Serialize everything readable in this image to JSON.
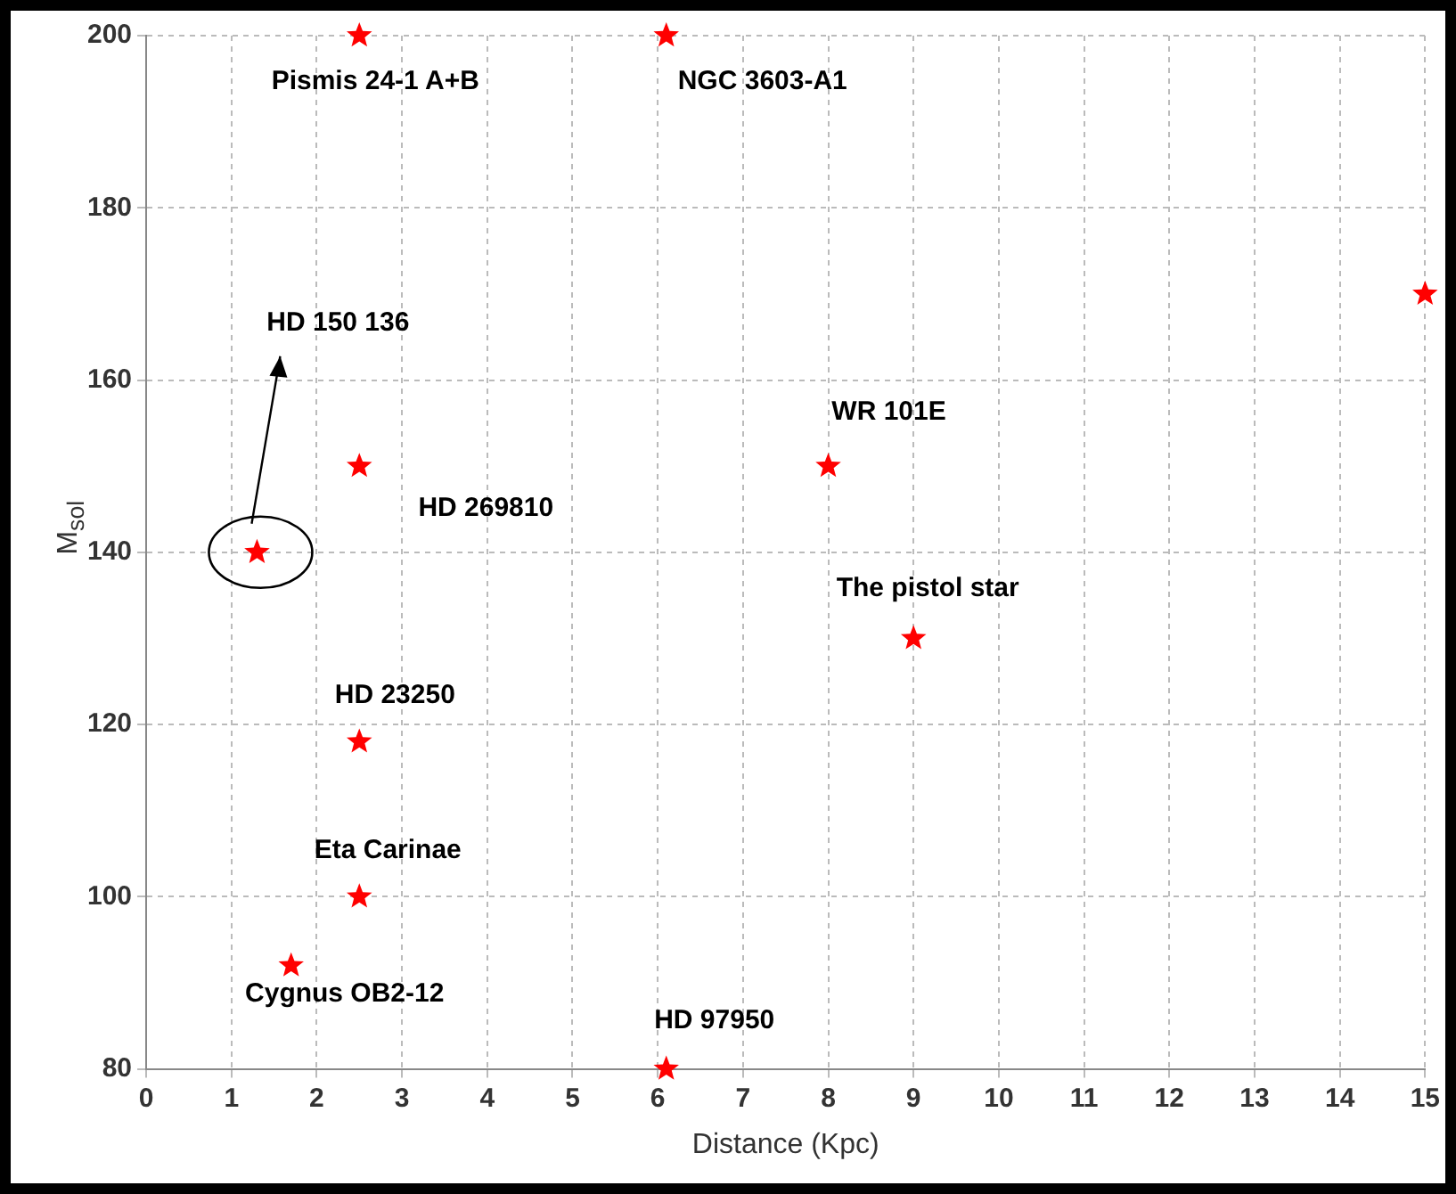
{
  "chart_data": {
    "type": "scatter",
    "xlabel": "Distance (Kpc)",
    "ylabel": "M$_{sol}$",
    "x": [
      2.5,
      6.1,
      15,
      8,
      2.5,
      1.3,
      9,
      2.5,
      2.5,
      1.7,
      6.1
    ],
    "series": [
      {
        "color": "#ff0000",
        "values": [
          200,
          200,
          170,
          150,
          150,
          140,
          130,
          118,
          100,
          92,
          80
        ]
      }
    ],
    "xlim": [
      0,
      15
    ],
    "xticks": [
      0,
      1,
      2,
      3,
      4,
      5,
      6,
      7,
      8,
      9,
      10,
      11,
      12,
      13,
      14,
      15
    ],
    "ylim": [
      80,
      200
    ],
    "yticks": [
      80,
      100,
      120,
      140,
      160,
      180,
      200
    ],
    "grid": true,
    "legend": false,
    "marker": "star",
    "annotations": [
      {
        "text": "Pismis 24-1 A+B",
        "x": 2.5,
        "y": 200
      },
      {
        "text": "NGC 3603-A1",
        "x": 6.1,
        "y": 200
      },
      {
        "text": "WR 101E",
        "x": 8,
        "y": 150
      },
      {
        "text": "HD 269810",
        "x": 2.5,
        "y": 150
      },
      "HD 150 136",
      {
        "text": "The pistol star",
        "x": 9,
        "y": 130
      },
      {
        "text": "HD 23250",
        "x": 2.5,
        "y": 118
      },
      {
        "text": "Eta Carinae",
        "x": 2.5,
        "y": 100
      },
      {
        "text": "Cygnus OB2-12",
        "x": 1.7,
        "y": 92
      },
      {
        "text": "HD 97950",
        "x": 6.1,
        "y": 80
      }
    ]
  }
}
